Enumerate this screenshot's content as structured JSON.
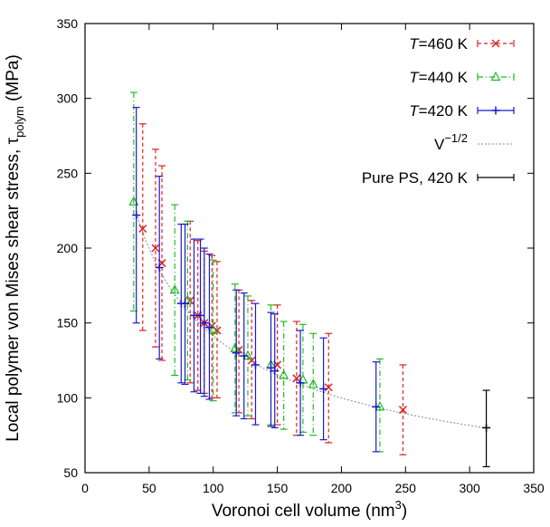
{
  "chart_data": {
    "type": "scatter",
    "title": "",
    "xlabel": {
      "text": "Voronoi cell volume (nm",
      "superscript": "3",
      "suffix": ")"
    },
    "ylabel": {
      "text": "Local polymer von Mises shear stress, τ",
      "subscript": "polym",
      "suffix": " (MPa)"
    },
    "xlim": [
      0,
      350
    ],
    "ylim": [
      50,
      350
    ],
    "xticks": [
      0,
      50,
      100,
      150,
      200,
      250,
      300,
      350
    ],
    "yticks": [
      50,
      100,
      150,
      200,
      250,
      300,
      350
    ],
    "xtick_labels": [
      "0",
      "50",
      "100",
      "150",
      "200",
      "250",
      "300",
      "350"
    ],
    "ytick_labels": [
      "50",
      "100",
      "150",
      "200",
      "250",
      "300",
      "350"
    ],
    "grid": false,
    "legend_position": "top-right",
    "legend": [
      {
        "series": "T460",
        "label_italic": "T",
        "label_rest": "=460 K"
      },
      {
        "series": "T440",
        "label_italic": "T",
        "label_rest": "=440 K"
      },
      {
        "series": "T420",
        "label_italic": "T",
        "label_rest": "=420 K"
      },
      {
        "series": "fit",
        "label_base": "V",
        "label_sup": "−1/2"
      },
      {
        "series": "pure",
        "label_plain": "Pure PS, 420 K"
      }
    ],
    "series": [
      {
        "key": "T460",
        "color": "#dd2222",
        "marker": "x",
        "line": "dashed",
        "points": [
          {
            "x": 45,
            "y": 213,
            "ylo": 145,
            "yhi": 283
          },
          {
            "x": 55,
            "y": 200,
            "ylo": 134,
            "yhi": 266
          },
          {
            "x": 60,
            "y": 190,
            "ylo": 125,
            "yhi": 255
          },
          {
            "x": 82,
            "y": 165,
            "ylo": 110,
            "yhi": 218
          },
          {
            "x": 88,
            "y": 155,
            "ylo": 105,
            "yhi": 205
          },
          {
            "x": 93,
            "y": 150,
            "ylo": 103,
            "yhi": 198
          },
          {
            "x": 99,
            "y": 148,
            "ylo": 100,
            "yhi": 195
          },
          {
            "x": 103,
            "y": 145,
            "ylo": 100,
            "yhi": 191
          },
          {
            "x": 120,
            "y": 132,
            "ylo": 90,
            "yhi": 172
          },
          {
            "x": 130,
            "y": 125,
            "ylo": 86,
            "yhi": 165
          },
          {
            "x": 150,
            "y": 122,
            "ylo": 82,
            "yhi": 162
          },
          {
            "x": 165,
            "y": 113,
            "ylo": 75,
            "yhi": 151
          },
          {
            "x": 190,
            "y": 107,
            "ylo": 70,
            "yhi": 143
          },
          {
            "x": 248,
            "y": 92,
            "ylo": 62,
            "yhi": 122
          }
        ]
      },
      {
        "key": "T440",
        "color": "#22bb22",
        "marker": "triangle",
        "line": "dashdot",
        "points": [
          {
            "x": 38,
            "y": 231,
            "ylo": 158,
            "yhi": 304
          },
          {
            "x": 70,
            "y": 172,
            "ylo": 115,
            "yhi": 229
          },
          {
            "x": 80,
            "y": 165,
            "ylo": 112,
            "yhi": 218
          },
          {
            "x": 100,
            "y": 145,
            "ylo": 98,
            "yhi": 192
          },
          {
            "x": 117,
            "y": 133,
            "ylo": 90,
            "yhi": 176
          },
          {
            "x": 127,
            "y": 128,
            "ylo": 88,
            "yhi": 168
          },
          {
            "x": 145,
            "y": 122,
            "ylo": 82,
            "yhi": 162
          },
          {
            "x": 155,
            "y": 115,
            "ylo": 79,
            "yhi": 151
          },
          {
            "x": 170,
            "y": 112,
            "ylo": 77,
            "yhi": 149
          },
          {
            "x": 178,
            "y": 109,
            "ylo": 75,
            "yhi": 143
          },
          {
            "x": 230,
            "y": 94,
            "ylo": 64,
            "yhi": 126
          }
        ]
      },
      {
        "key": "T420",
        "color": "#1a1acc",
        "marker": "plus",
        "line": "solid",
        "points": [
          {
            "x": 40,
            "y": 222,
            "ylo": 150,
            "yhi": 294
          },
          {
            "x": 58,
            "y": 187,
            "ylo": 126,
            "yhi": 248
          },
          {
            "x": 75,
            "y": 163,
            "ylo": 110,
            "yhi": 216
          },
          {
            "x": 78,
            "y": 163,
            "ylo": 109,
            "yhi": 216
          },
          {
            "x": 85,
            "y": 155,
            "ylo": 104,
            "yhi": 206
          },
          {
            "x": 90,
            "y": 155,
            "ylo": 103,
            "yhi": 206
          },
          {
            "x": 93,
            "y": 150,
            "ylo": 101,
            "yhi": 200
          },
          {
            "x": 97,
            "y": 147,
            "ylo": 99,
            "yhi": 196
          },
          {
            "x": 118,
            "y": 130,
            "ylo": 88,
            "yhi": 172
          },
          {
            "x": 124,
            "y": 128,
            "ylo": 86,
            "yhi": 170
          },
          {
            "x": 133,
            "y": 122,
            "ylo": 82,
            "yhi": 163
          },
          {
            "x": 145,
            "y": 120,
            "ylo": 81,
            "yhi": 157
          },
          {
            "x": 148,
            "y": 118,
            "ylo": 80,
            "yhi": 156
          },
          {
            "x": 168,
            "y": 110,
            "ylo": 75,
            "yhi": 145
          },
          {
            "x": 186,
            "y": 106,
            "ylo": 72,
            "yhi": 140
          },
          {
            "x": 227,
            "y": 94,
            "ylo": 64,
            "yhi": 124
          }
        ]
      },
      {
        "key": "pure",
        "color": "#000000",
        "marker": "plus",
        "line": "solid",
        "points": [
          {
            "x": 313,
            "y": 80,
            "ylo": 54,
            "yhi": 105
          }
        ]
      }
    ],
    "fit": {
      "key": "fit",
      "color": "#888888",
      "formula": "V^-1/2",
      "coefficient": 1413,
      "x_range": [
        40,
        315
      ]
    }
  }
}
